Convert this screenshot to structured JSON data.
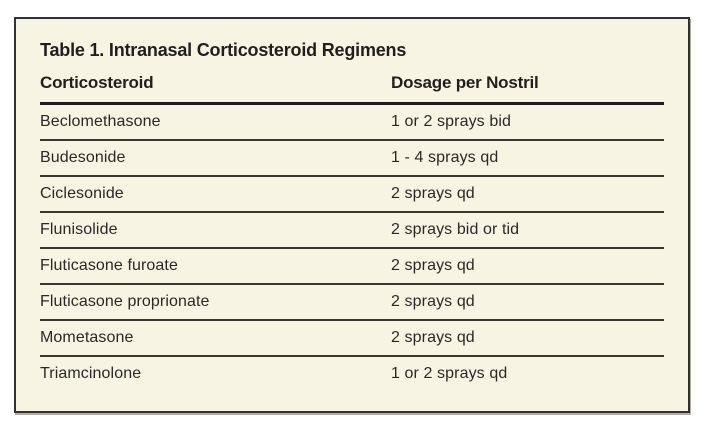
{
  "table": {
    "title": "Table 1. Intranasal Corticosteroid Regimens",
    "columns": [
      "Corticosteroid",
      "Dosage per Nostril"
    ],
    "rows": [
      {
        "drug": "Beclomethasone",
        "dosage": "1 or 2 sprays bid"
      },
      {
        "drug": "Budesonide",
        "dosage": "1 - 4 sprays qd"
      },
      {
        "drug": "Ciclesonide",
        "dosage": "2 sprays qd"
      },
      {
        "drug": "Flunisolide",
        "dosage": "2 sprays bid or tid"
      },
      {
        "drug": "Fluticasone furoate",
        "dosage": "2 sprays qd"
      },
      {
        "drug": "Fluticasone proprionate",
        "dosage": "2 sprays qd"
      },
      {
        "drug": "Mometasone",
        "dosage": "2 sprays qd"
      },
      {
        "drug": "Triamcinolone",
        "dosage": "1 or 2 sprays qd"
      }
    ]
  },
  "colors": {
    "page_background": "#ffffff",
    "card_background": "#f8f4e3",
    "card_border": "#33312e",
    "text": "#211f1e",
    "header_rule": "#1d1c1a",
    "row_rule": "#38362f"
  }
}
